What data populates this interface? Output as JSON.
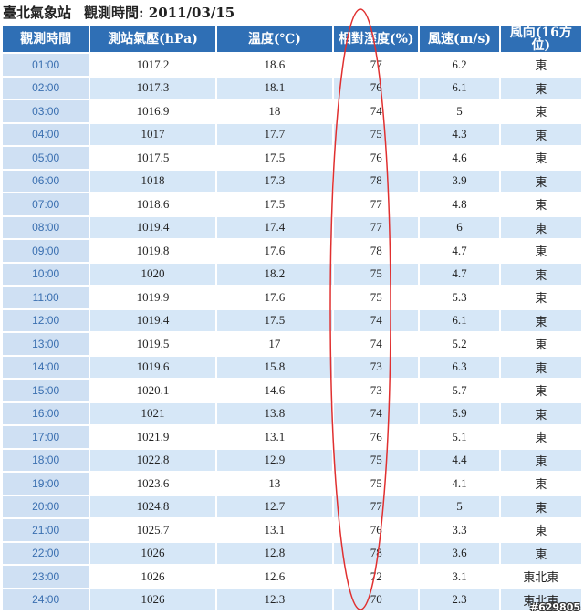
{
  "header": {
    "station": "臺北氣象站",
    "obs_time_label": "觀測時間: 2011/03/15"
  },
  "table": {
    "columns": [
      "觀測時間",
      "測站氣壓(hPa)",
      "溫度(℃)",
      "相對溼度(%)",
      "風速(m/s)",
      "風向(16方位)"
    ],
    "rows": [
      [
        "01:00",
        "1017.2",
        "18.6",
        "77",
        "6.2",
        "東"
      ],
      [
        "02:00",
        "1017.3",
        "18.1",
        "76",
        "6.1",
        "東"
      ],
      [
        "03:00",
        "1016.9",
        "18",
        "74",
        "5",
        "東"
      ],
      [
        "04:00",
        "1017",
        "17.7",
        "75",
        "4.3",
        "東"
      ],
      [
        "05:00",
        "1017.5",
        "17.5",
        "76",
        "4.6",
        "東"
      ],
      [
        "06:00",
        "1018",
        "17.3",
        "78",
        "3.9",
        "東"
      ],
      [
        "07:00",
        "1018.6",
        "17.5",
        "77",
        "4.8",
        "東"
      ],
      [
        "08:00",
        "1019.4",
        "17.4",
        "77",
        "6",
        "東"
      ],
      [
        "09:00",
        "1019.8",
        "17.6",
        "78",
        "4.7",
        "東"
      ],
      [
        "10:00",
        "1020",
        "18.2",
        "75",
        "4.7",
        "東"
      ],
      [
        "11:00",
        "1019.9",
        "17.6",
        "75",
        "5.3",
        "東"
      ],
      [
        "12:00",
        "1019.4",
        "17.5",
        "74",
        "6.1",
        "東"
      ],
      [
        "13:00",
        "1019.5",
        "17",
        "74",
        "5.2",
        "東"
      ],
      [
        "14:00",
        "1019.6",
        "15.8",
        "73",
        "6.3",
        "東"
      ],
      [
        "15:00",
        "1020.1",
        "14.6",
        "73",
        "5.7",
        "東"
      ],
      [
        "16:00",
        "1021",
        "13.8",
        "74",
        "5.9",
        "東"
      ],
      [
        "17:00",
        "1021.9",
        "13.1",
        "76",
        "5.1",
        "東"
      ],
      [
        "18:00",
        "1022.8",
        "12.9",
        "75",
        "4.4",
        "東"
      ],
      [
        "19:00",
        "1023.6",
        "13",
        "75",
        "4.1",
        "東"
      ],
      [
        "20:00",
        "1024.8",
        "12.7",
        "77",
        "5",
        "東"
      ],
      [
        "21:00",
        "1025.7",
        "13.1",
        "76",
        "3.3",
        "東"
      ],
      [
        "22:00",
        "1026",
        "12.8",
        "78",
        "3.6",
        "東"
      ],
      [
        "23:00",
        "1026",
        "12.6",
        "72",
        "3.1",
        "東北東"
      ],
      [
        "24:00",
        "1026",
        "12.3",
        "70",
        "2.3",
        "東北東"
      ]
    ]
  },
  "annotation": {
    "highlight_color": "#e03030"
  },
  "watermark": "#629805"
}
